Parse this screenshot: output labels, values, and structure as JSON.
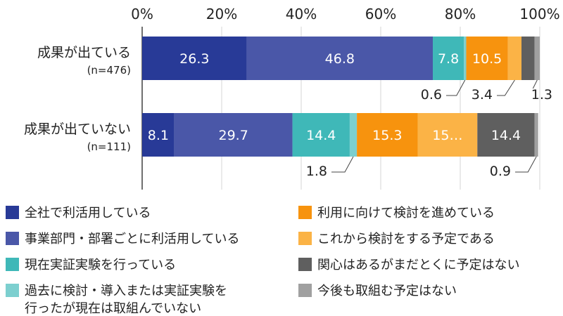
{
  "chart_data": {
    "type": "bar",
    "orientation": "horizontal",
    "stacked": true,
    "xlim": [
      0,
      100
    ],
    "x_ticks": [
      "0%",
      "20%",
      "40%",
      "60%",
      "80%",
      "100%"
    ],
    "grid": true,
    "legend_position": "bottom",
    "categories": [
      {
        "label": "成果が出ている",
        "n": "(n=476)"
      },
      {
        "label": "成果が出ていない",
        "n": "(n=111)"
      }
    ],
    "series": [
      {
        "name": "全社で利活用している",
        "color": "#283a97",
        "values": [
          26.3,
          8.1
        ],
        "labels": [
          "26.3",
          "8.1"
        ]
      },
      {
        "name": "事業部門・部署ごとに利活用している",
        "color": "#4a57a8",
        "values": [
          46.8,
          29.7
        ],
        "labels": [
          "46.8",
          "29.7"
        ]
      },
      {
        "name": "現在実証実験を行っている",
        "color": "#3fb8b8",
        "values": [
          7.8,
          14.4
        ],
        "labels": [
          "7.8",
          "14.4"
        ]
      },
      {
        "name": "過去に検討・導入または実証実験を行ったが現在は取組んでいない",
        "name_lines": [
          "過去に検討・導入または実証実験を",
          "行ったが現在は取組んでいない"
        ],
        "color": "#7ccfcf",
        "values": [
          0.6,
          1.8
        ],
        "labels": [
          "",
          ""
        ],
        "callouts": [
          "0.6",
          "1.8"
        ]
      },
      {
        "name": "利用に向けて検討を進めている",
        "color": "#f7930e",
        "values": [
          10.5,
          15.3
        ],
        "labels": [
          "10.5",
          "15.3"
        ]
      },
      {
        "name": "これから検討をする予定である",
        "color": "#fbb346",
        "values": [
          3.4,
          15.0
        ],
        "labels": [
          "",
          "15…"
        ],
        "callouts": [
          "3.4",
          ""
        ]
      },
      {
        "name": "関心はあるがまだとくに予定はない",
        "color": "#5f5f5f",
        "values": [
          3.3,
          14.4
        ],
        "labels": [
          "",
          "14.4"
        ]
      },
      {
        "name": "今後も取組む予定はない",
        "color": "#a0a0a0",
        "values": [
          1.3,
          0.9
        ],
        "labels": [
          "",
          ""
        ],
        "callouts": [
          "1.3",
          "0.9"
        ]
      }
    ]
  }
}
